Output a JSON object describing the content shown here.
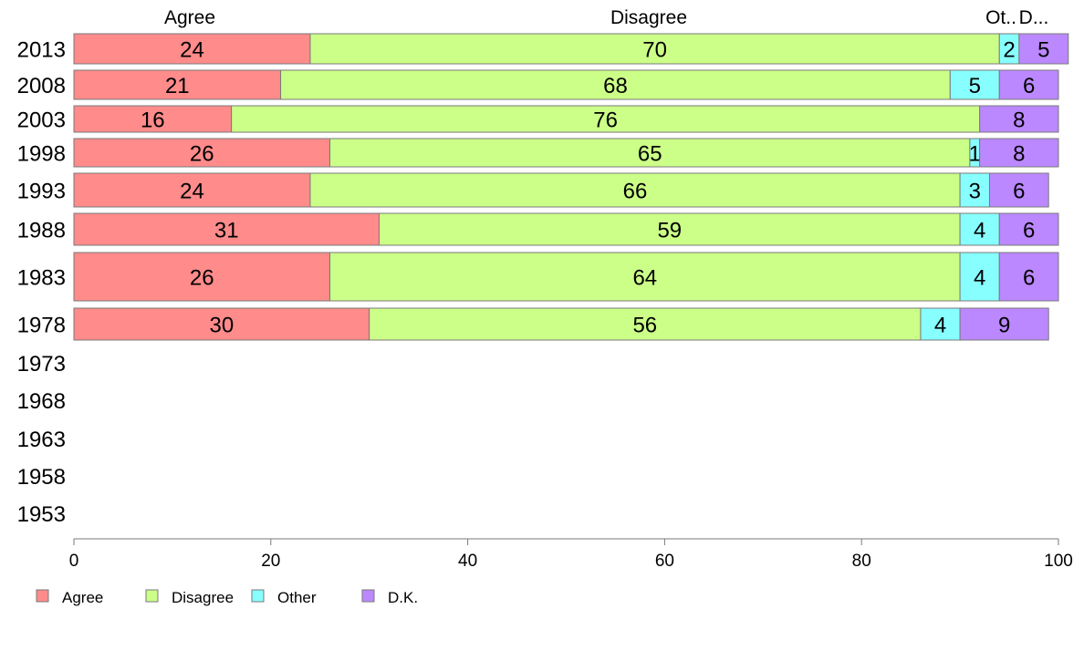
{
  "chart_data": {
    "type": "bar",
    "orientation": "horizontal",
    "stacked": true,
    "categories": [
      "2013",
      "2008",
      "2003",
      "1998",
      "1993",
      "1988",
      "1983",
      "1978",
      "1973",
      "1968",
      "1963",
      "1958",
      "1953"
    ],
    "series": [
      {
        "name": "Agree",
        "color": "#FF8B8B",
        "values": [
          24,
          21,
          16,
          26,
          24,
          31,
          26,
          30,
          null,
          null,
          null,
          null,
          null
        ]
      },
      {
        "name": "Disagree",
        "color": "#CCFF88",
        "values": [
          70,
          68,
          76,
          65,
          66,
          59,
          64,
          56,
          null,
          null,
          null,
          null,
          null
        ]
      },
      {
        "name": "Other",
        "color": "#88FFFF",
        "values": [
          2,
          5,
          0,
          1,
          3,
          4,
          4,
          4,
          null,
          null,
          null,
          null,
          null
        ]
      },
      {
        "name": "D.K.",
        "color": "#BB88FF",
        "values": [
          5,
          6,
          8,
          8,
          6,
          6,
          6,
          9,
          null,
          null,
          null,
          null,
          null
        ]
      }
    ],
    "column_headers": [
      "Agree",
      "Disagree",
      "Ot..",
      "D..."
    ],
    "xlim": [
      0,
      100
    ],
    "xticks": [
      "0",
      "20",
      "40",
      "60",
      "80",
      "100"
    ],
    "legend": {
      "placement": "bottom-left",
      "items": [
        "Agree",
        "Disagree",
        "Other",
        "D.K."
      ]
    },
    "grid": false
  }
}
